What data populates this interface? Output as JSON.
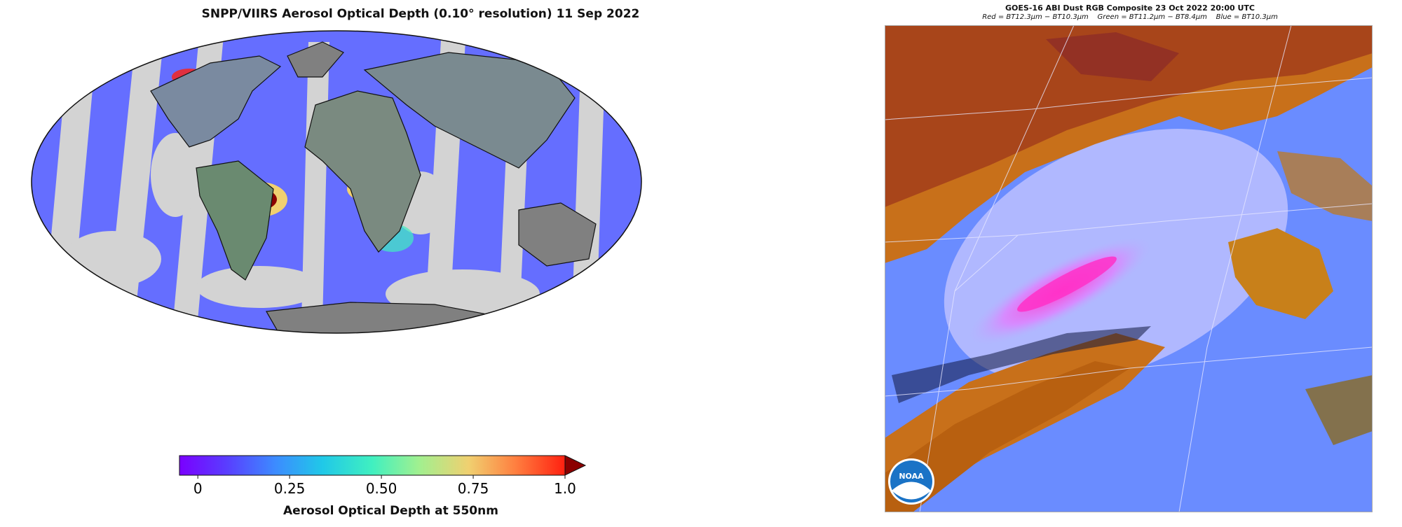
{
  "left_panel": {
    "title": "SNPP/VIIRS Aerosol Optical Depth (0.10° resolution)  11 Sep 2022",
    "colorbar": {
      "label": "Aerosol Optical Depth at 550nm",
      "ticks": [
        "0",
        "0.25",
        "0.50",
        "0.75",
        "1.0"
      ],
      "tick_values": [
        0,
        0.25,
        0.5,
        0.75,
        1.0
      ],
      "range": [
        -0.05,
        1.0
      ],
      "extend": "max",
      "colormap": "rainbow",
      "colors": [
        "#7a00ff",
        "#5a3cff",
        "#3c8cff",
        "#20c8e8",
        "#40f0c0",
        "#a0f090",
        "#f0d070",
        "#ff8040",
        "#ff2010",
        "#8b0000"
      ]
    },
    "map": {
      "projection": "Mollweide",
      "no_data_color": "#d3d3d3",
      "land_no_data_color": "#808080"
    }
  },
  "right_panel": {
    "title": "GOES-16 ABI Dust RGB Composite  23 Oct 2022 20:00 UTC",
    "subtitle": {
      "red_label": "Red",
      "red_formula": "BT12.3μm − BT10.3μm",
      "green_label": "Green",
      "green_formula": "BT11.2μm − BT8.4μm",
      "blue_label": "Blue",
      "blue_formula": "BT10.3μm"
    },
    "logo_text": "NOAA",
    "colors": {
      "background_blue": "#6a8cff",
      "cloud_orange": "#c8701a",
      "dust_magenta": "#ff40d0",
      "clear_lavender": "#b0b8ff",
      "noaa_blue": "#1a73c6"
    }
  }
}
